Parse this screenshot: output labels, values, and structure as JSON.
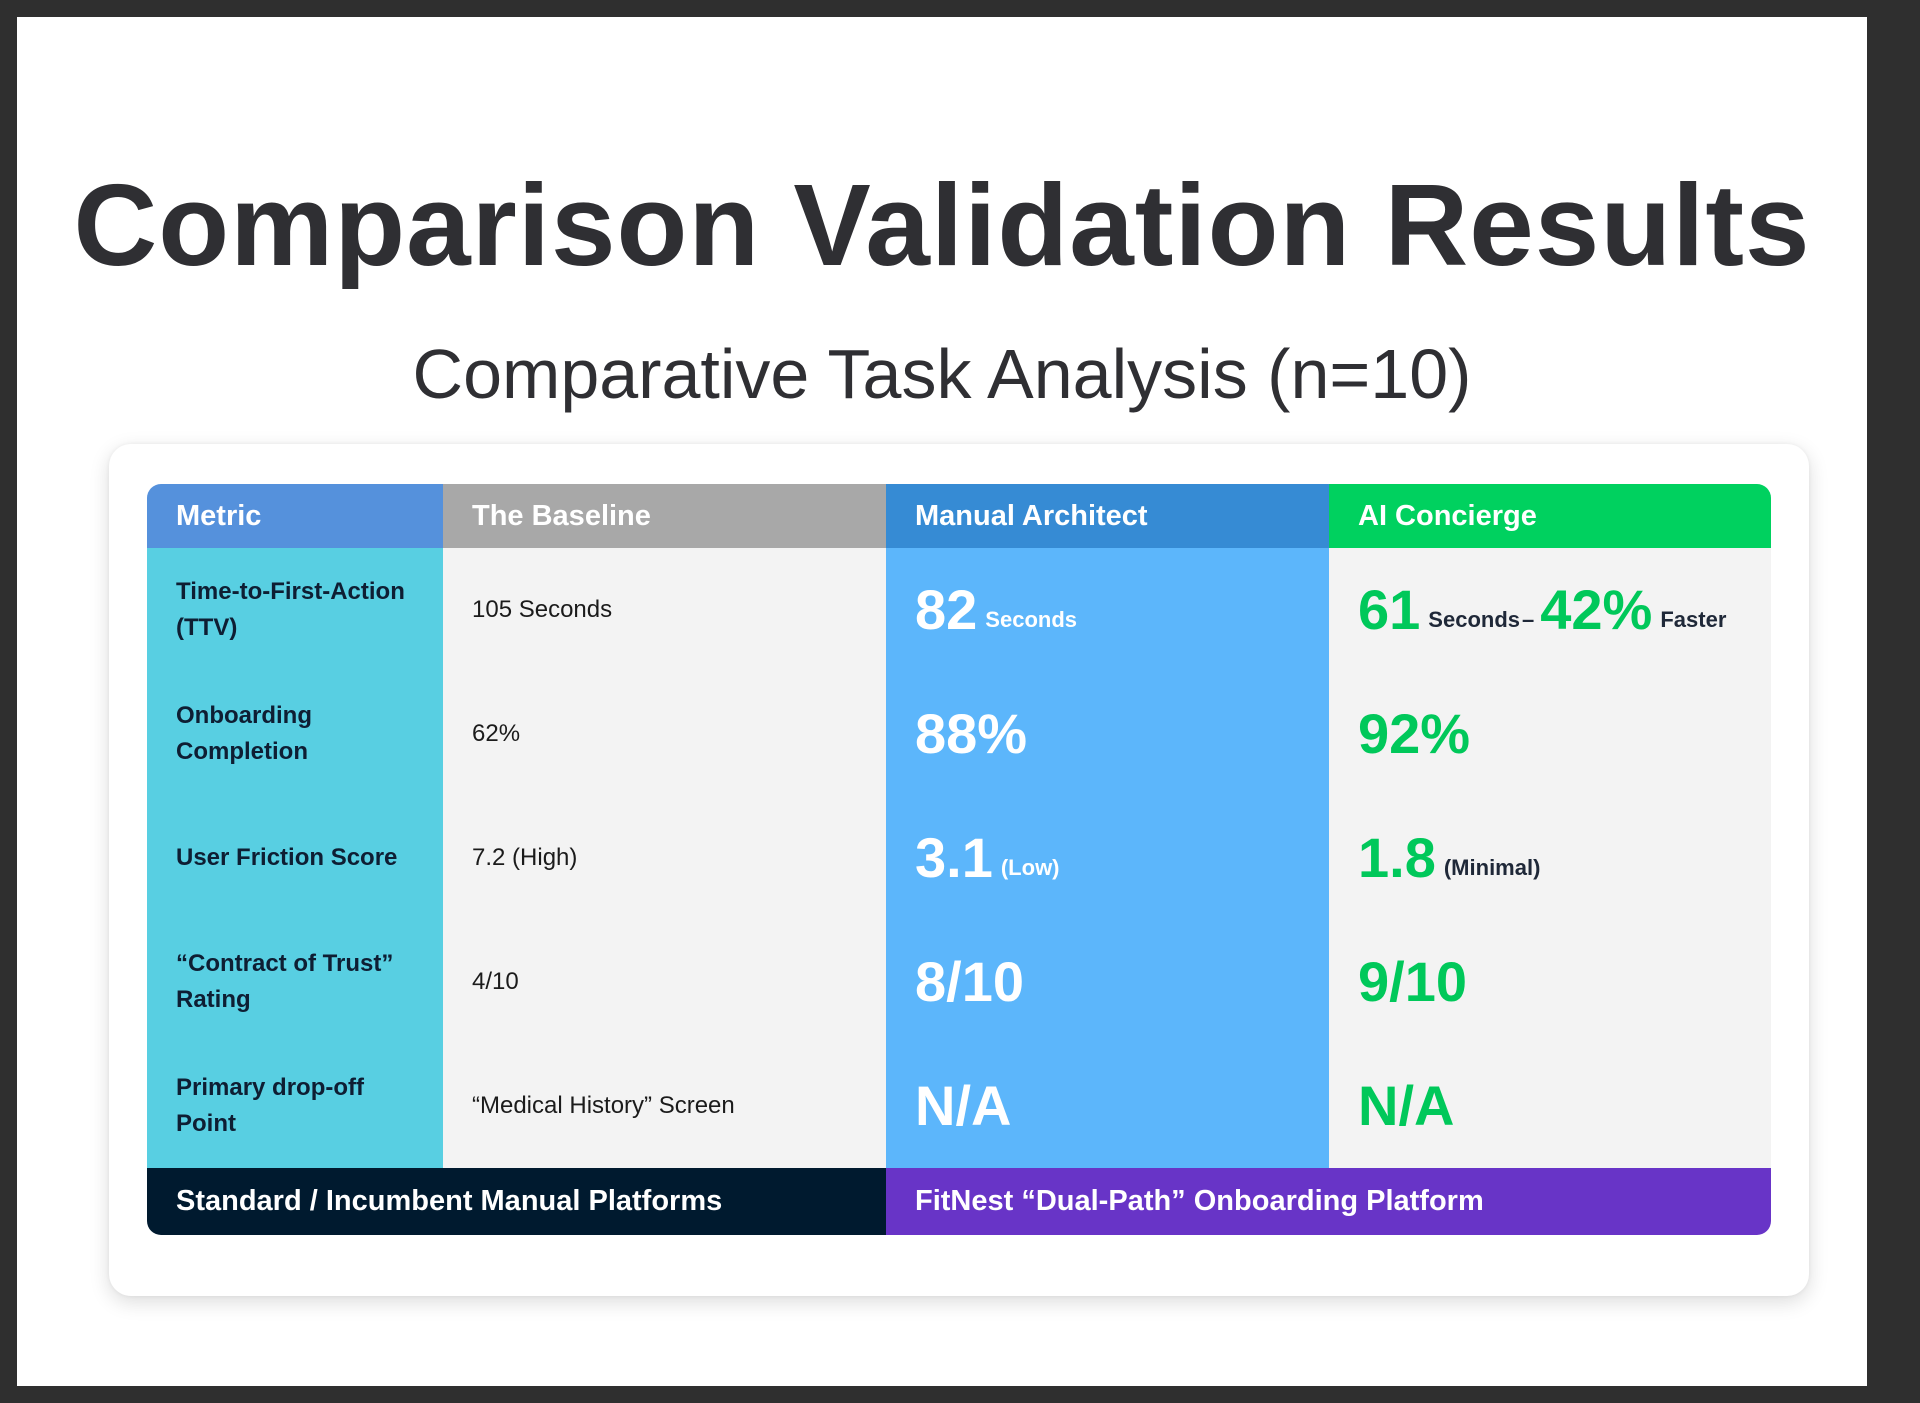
{
  "title": "Comparison Validation Results",
  "subtitle": "Comparative Task Analysis (n=10)",
  "table": {
    "headers": {
      "metric": "Metric",
      "baseline": "The Baseline",
      "manual": "Manual Architect",
      "ai": "AI Concierge"
    },
    "rows": [
      {
        "metric": "Time-to-First-Action (TTV)",
        "baseline": "105 Seconds",
        "manual_value": "82",
        "manual_note": "Seconds",
        "ai_value": "61",
        "ai_note": "Seconds",
        "ai_sep": "–",
        "ai_value2": "42%",
        "ai_note2": "Faster"
      },
      {
        "metric": "Onboarding Completion",
        "baseline": "62%",
        "manual_value": "88%",
        "ai_value": "92%"
      },
      {
        "metric": "User Friction Score",
        "baseline": "7.2 (High)",
        "manual_value": "3.1",
        "manual_note": "(Low)",
        "ai_value": "1.8",
        "ai_note": "(Minimal)"
      },
      {
        "metric": "“Contract of Trust” Rating",
        "baseline": "4/10",
        "manual_value": "8/10",
        "ai_value": "9/10"
      },
      {
        "metric": "Primary drop-off Point",
        "baseline": "“Medical History” Screen",
        "manual_value": "N/A",
        "ai_value": "N/A"
      }
    ],
    "footer": {
      "left": "Standard / Incumbent Manual Platforms",
      "right": "FitNest “Dual-Path” Onboarding Platform"
    }
  },
  "colors": {
    "metric_header": "#5591dc",
    "baseline_header": "#a8a8a8",
    "manual_header": "#368bd4",
    "ai_header": "#00d15f",
    "metric_column": "#58cfe2",
    "manual_column": "#5cb6fb",
    "ai_text": "#00c85a",
    "footer_left": "#001a2f",
    "footer_right": "#6834c7"
  }
}
